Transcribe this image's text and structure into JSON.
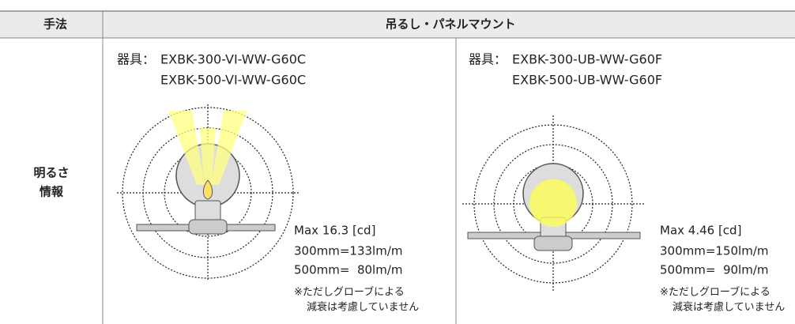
{
  "header": {
    "method": "手法",
    "mount": "吊るし・パネルマウント"
  },
  "row": {
    "label": [
      "明るさ",
      "情報"
    ],
    "cells": [
      {
        "fixture_label": "器具：",
        "models": [
          "EXBK-300-VI-WW-G60C",
          "EXBK-500-VI-WW-G60C"
        ],
        "max": "Max 16.3 [cd]",
        "flux": [
          "300mm=133lm/m",
          "500mm=  80lm/m"
        ],
        "note": [
          "※ただしグローブによる",
          "減衰は考慮していません"
        ]
      },
      {
        "fixture_label": "器具：",
        "models": [
          "EXBK-300-UB-WW-G60F",
          "EXBK-500-UB-WW-G60F"
        ],
        "max": "Max 4.46 [cd]",
        "flux": [
          "300mm=150lm/m",
          "500mm=  90lm/m"
        ],
        "note": [
          "※ただしグローブによる",
          "減衰は考慮していません"
        ]
      }
    ]
  }
}
